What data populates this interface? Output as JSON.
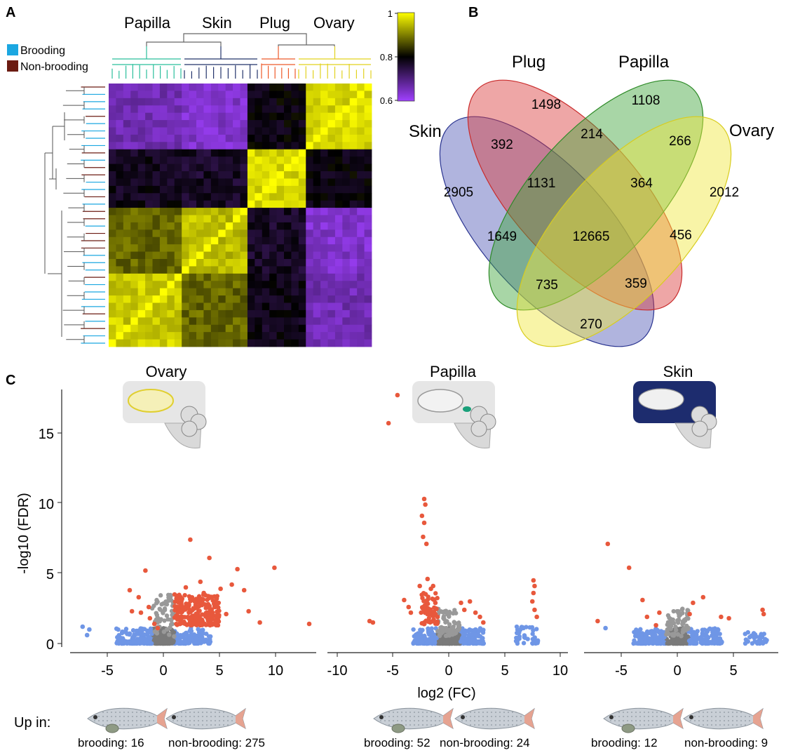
{
  "panels": {
    "a": "A",
    "b": "B",
    "c": "C"
  },
  "panel_a": {
    "tissue_labels": [
      "Papilla",
      "Skin",
      "Plug",
      "Ovary"
    ],
    "legend": [
      {
        "label": "Brooding",
        "color": "#1ba7e1"
      },
      {
        "label": "Non-brooding",
        "color": "#6b1b12"
      }
    ],
    "colorbar": {
      "max": "1",
      "mid": "0.8",
      "min": "0.6"
    },
    "cluster_colors": {
      "Papilla": "#2bbf9c",
      "Skin": "#23346b",
      "Plug": "#ee5a2a",
      "Ovary": "#e2d21f"
    }
  },
  "chart_data": [
    {
      "type": "heatmap",
      "title": "",
      "groups": [
        "Papilla",
        "Skin",
        "Plug",
        "Ovary"
      ],
      "scale": [
        0.6,
        1
      ],
      "colormap": [
        "#9b30ff",
        "#000000",
        "#ffff00"
      ]
    },
    {
      "type": "venn",
      "sets": [
        "Skin",
        "Plug",
        "Papilla",
        "Ovary"
      ],
      "set_colors": {
        "Skin": "#7b80c4",
        "Plug": "#e57f7f",
        "Papilla": "#7cc66f",
        "Ovary": "#f0ea74"
      },
      "regions": [
        {
          "sets": [
            "Plug"
          ],
          "value": "1498"
        },
        {
          "sets": [
            "Papilla"
          ],
          "value": "1108"
        },
        {
          "sets": [
            "Skin"
          ],
          "value": "2905"
        },
        {
          "sets": [
            "Ovary"
          ],
          "value": "2012"
        },
        {
          "sets": [
            "Skin",
            "Plug"
          ],
          "value": "392"
        },
        {
          "sets": [
            "Plug",
            "Papilla"
          ],
          "value": "214"
        },
        {
          "sets": [
            "Papilla",
            "Ovary"
          ],
          "value": "266"
        },
        {
          "sets": [
            "Skin",
            "Plug",
            "Papilla"
          ],
          "value": "1131"
        },
        {
          "sets": [
            "Plug",
            "Papilla",
            "Ovary"
          ],
          "value": "364"
        },
        {
          "sets": [
            "Skin",
            "Papilla"
          ],
          "value": "1649"
        },
        {
          "sets": [
            "Skin",
            "Plug",
            "Papilla",
            "Ovary"
          ],
          "value": "12665"
        },
        {
          "sets": [
            "Plug",
            "Ovary"
          ],
          "value": "456"
        },
        {
          "sets": [
            "Skin",
            "Papilla",
            "Ovary"
          ],
          "value": "735"
        },
        {
          "sets": [
            "Skin",
            "Plug",
            "Ovary"
          ],
          "value": "359"
        },
        {
          "sets": [
            "Skin",
            "Ovary"
          ],
          "value": "270"
        }
      ]
    },
    {
      "type": "scatter",
      "title": "Ovary",
      "xlabel": "log2 (FC)",
      "ylabel": "-log10 (FDR)",
      "xlim": [
        -8.5,
        14
      ],
      "ylim": [
        0,
        18
      ],
      "xticks": [
        "-5",
        "0",
        "5",
        "10"
      ],
      "yticks": [
        "0",
        "5",
        "10",
        "15"
      ],
      "colors": {
        "significant": "#e8583c",
        "fc_only": "#6f96e6",
        "nonsig": "#999999"
      },
      "highlighted_points": [
        [
          -7.2,
          1.2
        ],
        [
          -6.6,
          1.0
        ],
        [
          -6.8,
          0.6
        ],
        [
          -3,
          3.8
        ],
        [
          -2.8,
          2.3
        ],
        [
          -2.2,
          3.3
        ],
        [
          -2,
          2.2
        ],
        [
          -1.6,
          5.2
        ],
        [
          -1.3,
          2.6
        ],
        [
          -1.2,
          1.8
        ],
        [
          -0.8,
          1.4
        ],
        [
          -0.5,
          1.1
        ],
        [
          1.2,
          3.4
        ],
        [
          1.6,
          2.8
        ],
        [
          2,
          4.0
        ],
        [
          2.4,
          7.4
        ],
        [
          2.8,
          3.0
        ],
        [
          3.3,
          4.4
        ],
        [
          3.6,
          3.6
        ],
        [
          4.1,
          6.1
        ],
        [
          4.6,
          2.6
        ],
        [
          5.1,
          3.9
        ],
        [
          5.6,
          2.1
        ],
        [
          6.1,
          4.2
        ],
        [
          6.6,
          5.3
        ],
        [
          7.2,
          3.8
        ],
        [
          7.6,
          2.3
        ],
        [
          8.6,
          1.5
        ],
        [
          9.9,
          5.4
        ],
        [
          13,
          1.4
        ]
      ],
      "legend": {
        "up_in": "Up in:",
        "brooding": "brooding: 16",
        "non_brooding": "non-brooding: 275"
      }
    },
    {
      "type": "scatter",
      "title": "Papilla",
      "xlabel": "log2 (FC)",
      "xlim": [
        -11,
        10.5
      ],
      "ylim": [
        0,
        18
      ],
      "xticks": [
        "-10",
        "-5",
        "0",
        "5",
        "10"
      ],
      "highlighted_points": [
        [
          -5.4,
          15.7
        ],
        [
          -4.6,
          17.7
        ],
        [
          -7.1,
          1.6
        ],
        [
          -6.8,
          1.5
        ],
        [
          -4,
          3.1
        ],
        [
          -3.6,
          2.6
        ],
        [
          -3.4,
          2.2
        ],
        [
          -2.6,
          4.1
        ],
        [
          -2.4,
          9.1
        ],
        [
          -2.2,
          10.3
        ],
        [
          -2.1,
          9.9
        ],
        [
          -2.2,
          8.6
        ],
        [
          -2.3,
          7.6
        ],
        [
          -2,
          7.1
        ],
        [
          -1.9,
          4.6
        ],
        [
          -1.6,
          3.9
        ],
        [
          -1.4,
          4.1
        ],
        [
          -1.2,
          2.9
        ],
        [
          -1,
          1.9
        ],
        [
          1.1,
          2.9
        ],
        [
          1.4,
          2.4
        ],
        [
          1.9,
          3.0
        ],
        [
          2.4,
          2.2
        ],
        [
          2.8,
          1.9
        ],
        [
          3.1,
          1.5
        ],
        [
          7.6,
          4.5
        ],
        [
          7.7,
          4.1
        ],
        [
          7.6,
          3.6
        ],
        [
          7.5,
          3.0
        ],
        [
          7.7,
          2.4
        ],
        [
          7.9,
          1.9
        ]
      ],
      "legend": {
        "up_in": "Up in:",
        "brooding": "brooding: 52",
        "non_brooding": "non-brooding: 24"
      }
    },
    {
      "type": "scatter",
      "title": "Skin",
      "xlabel": "log2 (FC)",
      "xlim": [
        -8,
        8.5
      ],
      "ylim": [
        0,
        18
      ],
      "xticks": [
        "-5",
        "0",
        "5"
      ],
      "highlighted_points": [
        [
          -6.2,
          7.1
        ],
        [
          -4.3,
          5.4
        ],
        [
          -7.1,
          1.6
        ],
        [
          -6.4,
          1.1
        ],
        [
          -3.1,
          3.1
        ],
        [
          -2.7,
          1.9
        ],
        [
          -1.9,
          1.3
        ],
        [
          -1.6,
          2.2
        ],
        [
          1.4,
          2.9
        ],
        [
          1.1,
          2.1
        ],
        [
          2.3,
          3.3
        ],
        [
          3.9,
          1.9
        ],
        [
          4.6,
          1.8
        ],
        [
          7.6,
          2.4
        ],
        [
          7.7,
          2.1
        ]
      ],
      "legend": {
        "up_in": "",
        "brooding": "brooding: 12",
        "non_brooding": "non-brooding: 9"
      }
    }
  ]
}
